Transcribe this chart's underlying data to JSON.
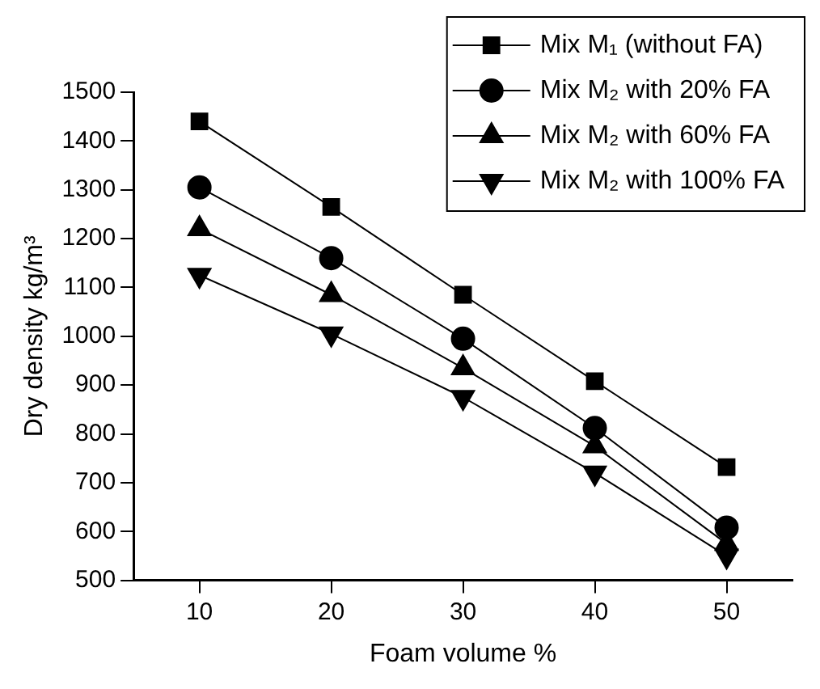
{
  "chart_data": {
    "type": "line",
    "xlabel": "Foam volume %",
    "ylabel": "Dry density kg/m³",
    "x": [
      10,
      20,
      30,
      40,
      50
    ],
    "series": [
      {
        "name": "Mix M₁ (without FA)",
        "color": "#000000",
        "marker": "square",
        "values": [
          1440,
          1265,
          1085,
          908,
          732
        ]
      },
      {
        "name": "Mix M₂ with 20% FA",
        "color": "#000000",
        "marker": "circle",
        "values": [
          1305,
          1160,
          995,
          812,
          608
        ]
      },
      {
        "name": "Mix M₂ with 60% FA",
        "color": "#000000",
        "marker": "triangle",
        "values": [
          1220,
          1085,
          935,
          775,
          575
        ]
      },
      {
        "name": "Mix M₂ with 100% FA",
        "color": "#000000",
        "marker": "triangle-down",
        "values": [
          1125,
          1005,
          875,
          720,
          550
        ]
      }
    ],
    "xlim": [
      5,
      55
    ],
    "xticks": [
      10,
      20,
      30,
      40,
      50
    ],
    "ylim": [
      500,
      1500
    ],
    "yticks": [
      500,
      600,
      700,
      800,
      900,
      1000,
      1100,
      1200,
      1300,
      1400,
      1500
    ],
    "grid": false,
    "legend": "top right",
    "line_style": "solid"
  }
}
